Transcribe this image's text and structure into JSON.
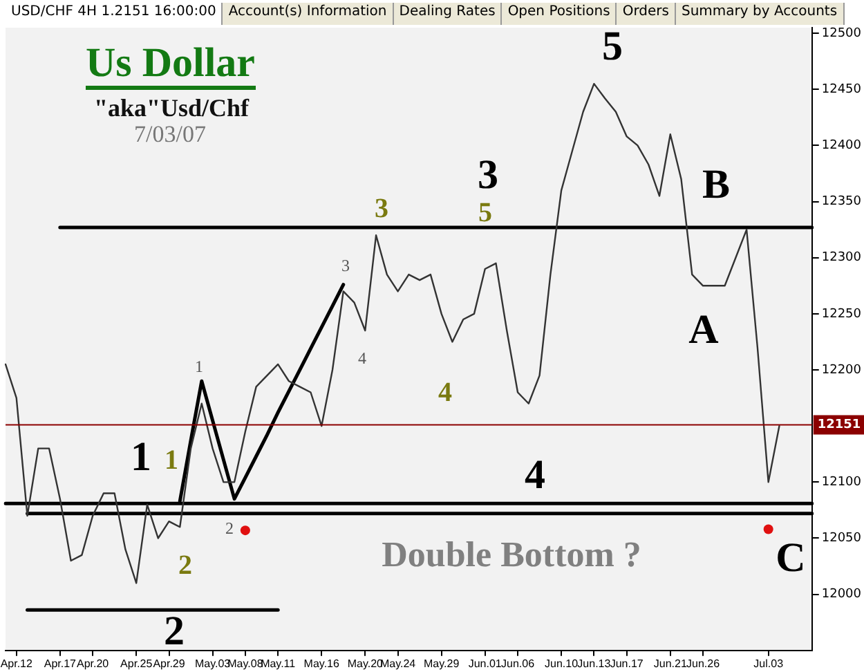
{
  "chart_data": {
    "type": "line",
    "title": "Us Dollar",
    "subtitle": "\"aka\"Usd/Chf",
    "annotations": [
      "USD/CHF 4H 1.2151 16:00:00",
      "Account(s) Information",
      "Dealing Rates",
      "Open Positions",
      "Orders",
      "Summary by Accounts",
      "7/03/07",
      "Double Bottom ?",
      "5",
      "3",
      "B",
      "A",
      "4",
      "C",
      "1",
      "2",
      "1",
      "2",
      "3",
      "5",
      "4",
      "1",
      "3",
      "4",
      "2"
    ],
    "categories": [
      null,
      "Apr.12",
      null,
      null,
      null,
      "Apr.17",
      null,
      null,
      "Apr.20",
      null,
      null,
      null,
      "Apr.25",
      null,
      null,
      "Apr.29",
      null,
      null,
      null,
      "May.03",
      null,
      null,
      "May.08",
      null,
      null,
      "May.11",
      null,
      null,
      null,
      "May.16",
      null,
      null,
      null,
      "May.20",
      null,
      null,
      "May.24",
      null,
      null,
      null,
      "May.29",
      null,
      null,
      null,
      "Jun.01",
      null,
      null,
      "Jun.06",
      null,
      null,
      null,
      "Jun.10",
      null,
      null,
      "Jun.13",
      null,
      null,
      "Jun.17",
      null,
      null,
      null,
      "Jun.21",
      null,
      null,
      "Jun.26",
      null,
      null,
      null,
      null,
      null,
      "Jul.03",
      null,
      null,
      null,
      null
    ],
    "ylim": [
      11950,
      12505
    ],
    "yticks": [
      12000,
      12050,
      12100,
      12200,
      12250,
      12300,
      12350,
      12400,
      12450,
      12500
    ],
    "grid": false,
    "legend": false,
    "marker": "none",
    "ref_lines": [
      {
        "axis": "y",
        "value": 12151,
        "label": "12151",
        "color": "#8b0000"
      }
    ],
    "series": [
      {
        "color": "#333333",
        "values": [
          12205,
          12175,
          12070,
          12130,
          12130,
          12085,
          12030,
          12035,
          12070,
          12090,
          12090,
          12040,
          12010,
          12080,
          12050,
          12065,
          12060,
          12130,
          12170,
          12130,
          12100,
          12100,
          12145,
          12185,
          12195,
          12205,
          12190,
          12185,
          12180,
          12150,
          12200,
          12270,
          12260,
          12235,
          12320,
          12285,
          12270,
          12285,
          12280,
          12285,
          12250,
          12225,
          12245,
          12250,
          12290,
          12295,
          12235,
          12180,
          12170,
          12195,
          12285,
          12360,
          12395,
          12430,
          12455,
          12442,
          12430,
          12408,
          12400,
          12383,
          12355,
          12410,
          12370,
          12285,
          12275,
          12275,
          12275,
          12300,
          12325,
          12220,
          12100,
          12150,
          null,
          null,
          null
        ]
      },
      {
        "type": "line",
        "color": "#000000",
        "values": [
          null,
          null,
          null,
          null,
          null,
          null,
          null,
          null,
          null,
          null,
          null,
          null,
          null,
          null,
          null,
          null,
          12083,
          12137,
          12190,
          12155,
          12120,
          12085,
          12104,
          12123,
          12142,
          12162,
          12181,
          12200,
          12219,
          12238,
          12257,
          12276,
          null,
          null,
          null,
          null,
          null,
          null,
          null,
          null,
          null,
          null,
          null,
          null,
          null,
          null,
          null,
          null,
          null,
          null,
          null,
          null,
          null,
          null,
          null,
          null,
          null,
          null,
          null,
          null,
          null,
          null,
          null,
          null,
          null,
          null,
          null,
          null,
          null,
          null,
          null,
          null,
          null,
          null,
          null
        ]
      },
      {
        "type": "line",
        "color": "#000000",
        "values": [
          null,
          null,
          null,
          null,
          null,
          12327,
          12327,
          12327,
          12327,
          12327,
          12327,
          12327,
          12327,
          12327,
          12327,
          12327,
          12327,
          12327,
          12327,
          12327,
          12327,
          12327,
          12327,
          12327,
          12327,
          12327,
          12327,
          12327,
          12327,
          12327,
          12327,
          12327,
          12327,
          12327,
          12327,
          12327,
          12327,
          12327,
          12327,
          12327,
          12327,
          12327,
          12327,
          12327,
          12327,
          12327,
          12327,
          12327,
          12327,
          12327,
          12327,
          12327,
          12327,
          12327,
          12327,
          12327,
          12327,
          12327,
          12327,
          12327,
          12327,
          12327,
          12327,
          12327,
          12327,
          12327,
          12327,
          12327,
          12327,
          12327,
          12327,
          12327,
          12327,
          12327,
          12327
        ]
      },
      {
        "type": "line",
        "color": "#000000",
        "values": [
          12081,
          12081,
          12081,
          12081,
          12081,
          12081,
          12081,
          12081,
          12081,
          12081,
          12081,
          12081,
          12081,
          12081,
          12081,
          12081,
          12081,
          12081,
          12081,
          12081,
          12081,
          12081,
          12081,
          12081,
          12081,
          12081,
          12081,
          12081,
          12081,
          12081,
          12081,
          12081,
          12081,
          12081,
          12081,
          12081,
          12081,
          12081,
          12081,
          12081,
          12081,
          12081,
          12081,
          12081,
          12081,
          12081,
          12081,
          12081,
          12081,
          12081,
          12081,
          12081,
          12081,
          12081,
          12081,
          12081,
          12081,
          12081,
          12081,
          12081,
          12081,
          12081,
          12081,
          12081,
          12081,
          12081,
          12081,
          12081,
          12081,
          12081,
          12081,
          12081,
          12081,
          12081,
          12081
        ]
      },
      {
        "type": "line",
        "color": "#000000",
        "values": [
          null,
          null,
          12072,
          12072,
          12072,
          12072,
          12072,
          12072,
          12072,
          12072,
          12072,
          12072,
          12072,
          12072,
          12072,
          12072,
          12072,
          12072,
          12072,
          12072,
          12072,
          12072,
          12072,
          12072,
          12072,
          12072,
          12072,
          12072,
          12072,
          12072,
          12072,
          12072,
          12072,
          12072,
          12072,
          12072,
          12072,
          12072,
          12072,
          12072,
          12072,
          12072,
          12072,
          12072,
          12072,
          12072,
          12072,
          12072,
          12072,
          12072,
          12072,
          12072,
          12072,
          12072,
          12072,
          12072,
          12072,
          12072,
          12072,
          12072,
          12072,
          12072,
          12072,
          12072,
          12072,
          12072,
          12072,
          12072,
          12072,
          12072,
          12072,
          12072,
          12072,
          12072,
          12072
        ]
      },
      {
        "type": "line",
        "color": "#000000",
        "values": [
          null,
          null,
          11986,
          11986,
          11986,
          11986,
          11986,
          11986,
          11986,
          11986,
          11986,
          11986,
          11986,
          11986,
          11986,
          11986,
          11986,
          11986,
          11986,
          11986,
          11986,
          11986,
          11986,
          11986,
          11986,
          11986,
          null,
          null,
          null,
          null,
          null,
          null,
          null,
          null,
          null,
          null,
          null,
          null,
          null,
          null,
          null,
          null,
          null,
          null,
          null,
          null,
          null,
          null,
          null,
          null,
          null,
          null,
          null,
          null,
          null,
          null,
          null,
          null,
          null,
          null,
          null,
          null,
          null,
          null,
          null,
          null,
          null,
          null,
          null,
          null,
          null,
          null,
          null,
          null,
          null
        ]
      },
      {
        "type": "scatter",
        "color": "#e01010",
        "marker": "circle",
        "values": [
          null,
          null,
          null,
          null,
          null,
          null,
          null,
          null,
          null,
          null,
          null,
          null,
          null,
          null,
          null,
          null,
          null,
          null,
          null,
          null,
          null,
          null,
          12057,
          null,
          null,
          null,
          null,
          null,
          null,
          null,
          null,
          null,
          null,
          null,
          null,
          null,
          null,
          null,
          null,
          null,
          null,
          null,
          null,
          null,
          null,
          null,
          null,
          null,
          null,
          null,
          null,
          null,
          null,
          null,
          null,
          null,
          null,
          null,
          null,
          null,
          null,
          null,
          null,
          null,
          null,
          null,
          null,
          null,
          null,
          null,
          12058,
          null,
          null,
          null,
          null
        ]
      }
    ]
  }
}
